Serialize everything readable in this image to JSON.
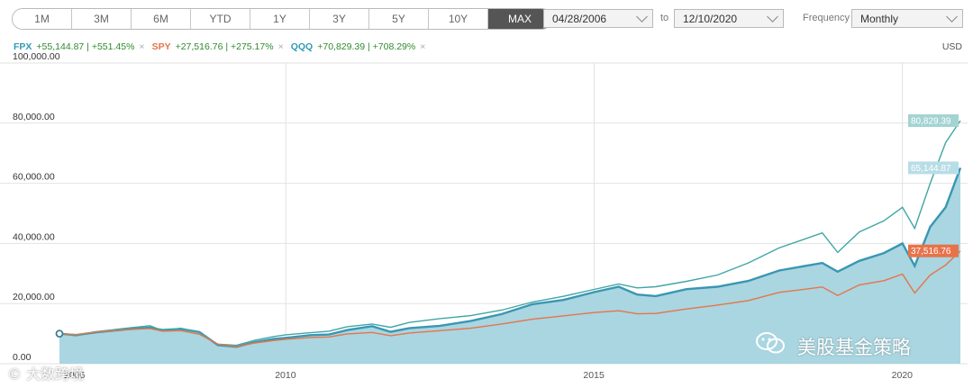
{
  "range_buttons": [
    "1M",
    "3M",
    "6M",
    "YTD",
    "1Y",
    "3Y",
    "5Y",
    "10Y",
    "MAX"
  ],
  "active_range": "MAX",
  "date_range": {
    "from": "04/28/2006",
    "to_label": "to",
    "to": "12/10/2020"
  },
  "frequency": {
    "label": "Frequency",
    "value": "Monthly"
  },
  "currency": "USD",
  "legend": [
    {
      "ticker": "FPX",
      "change": "+55,144.87 | +551.45%",
      "color": "#2f9ab8",
      "remove": "×"
    },
    {
      "ticker": "SPY",
      "change": "+27,516.76 | +275.17%",
      "color": "#e8734a",
      "remove": "×"
    },
    {
      "ticker": "QQQ",
      "change": "+70,829.39 | +708.29%",
      "color": "#2f9ab8",
      "remove": "×"
    }
  ],
  "watermark": "美股基金策略",
  "watermark2": "© 大数跨境",
  "chart_data": {
    "type": "area",
    "x_start": "2006-04-28",
    "x_end": "2020-12-10",
    "ylim": [
      0,
      100000
    ],
    "yticks": [
      "0.00",
      "20,000.00",
      "40,000.00",
      "60,000.00",
      "80,000.00",
      "100,000.00"
    ],
    "ytick_values": [
      0,
      20000,
      40000,
      60000,
      80000,
      100000
    ],
    "xticks": [
      "2006",
      "2010",
      "2015",
      "2020"
    ],
    "xtick_years": [
      2006.33,
      2010,
      2015,
      2020
    ],
    "grid": true,
    "series": [
      {
        "name": "FPX",
        "style": "area",
        "color": "#3a96b3",
        "fill": "#a9d6e0",
        "end_label": "65,144.87",
        "points": [
          [
            2006.33,
            10000
          ],
          [
            2006.6,
            9500
          ],
          [
            2006.9,
            10400
          ],
          [
            2007.2,
            11000
          ],
          [
            2007.5,
            11600
          ],
          [
            2007.8,
            12000
          ],
          [
            2008.0,
            11200
          ],
          [
            2008.3,
            11600
          ],
          [
            2008.6,
            10500
          ],
          [
            2008.9,
            6200
          ],
          [
            2009.2,
            5600
          ],
          [
            2009.5,
            7200
          ],
          [
            2009.8,
            8200
          ],
          [
            2010.0,
            8600
          ],
          [
            2010.4,
            9500
          ],
          [
            2010.7,
            9700
          ],
          [
            2011.0,
            11200
          ],
          [
            2011.4,
            12500
          ],
          [
            2011.7,
            10600
          ],
          [
            2012.0,
            11800
          ],
          [
            2012.5,
            12600
          ],
          [
            2013.0,
            14200
          ],
          [
            2013.5,
            16500
          ],
          [
            2014.0,
            19800
          ],
          [
            2014.5,
            21200
          ],
          [
            2015.0,
            23800
          ],
          [
            2015.4,
            25600
          ],
          [
            2015.7,
            23000
          ],
          [
            2016.0,
            22500
          ],
          [
            2016.5,
            24800
          ],
          [
            2017.0,
            25600
          ],
          [
            2017.5,
            27500
          ],
          [
            2018.0,
            31000
          ],
          [
            2018.7,
            33500
          ],
          [
            2018.95,
            30600
          ],
          [
            2019.3,
            34200
          ],
          [
            2019.7,
            36800
          ],
          [
            2020.0,
            40000
          ],
          [
            2020.2,
            32500
          ],
          [
            2020.45,
            45500
          ],
          [
            2020.7,
            52000
          ],
          [
            2020.94,
            65144.87
          ]
        ]
      },
      {
        "name": "QQQ",
        "style": "line",
        "color": "#3fa6a6",
        "end_label": "80,829.39",
        "points": [
          [
            2006.33,
            10000
          ],
          [
            2006.6,
            9300
          ],
          [
            2006.9,
            10600
          ],
          [
            2007.2,
            11300
          ],
          [
            2007.5,
            12000
          ],
          [
            2007.8,
            12600
          ],
          [
            2008.0,
            11000
          ],
          [
            2008.3,
            11800
          ],
          [
            2008.6,
            10300
          ],
          [
            2008.9,
            6500
          ],
          [
            2009.2,
            6100
          ],
          [
            2009.5,
            7800
          ],
          [
            2009.8,
            9000
          ],
          [
            2010.0,
            9600
          ],
          [
            2010.4,
            10300
          ],
          [
            2010.7,
            10800
          ],
          [
            2011.0,
            12300
          ],
          [
            2011.4,
            13200
          ],
          [
            2011.7,
            12100
          ],
          [
            2012.0,
            13700
          ],
          [
            2012.5,
            15000
          ],
          [
            2013.0,
            16000
          ],
          [
            2013.5,
            17800
          ],
          [
            2014.0,
            20500
          ],
          [
            2014.5,
            22400
          ],
          [
            2015.0,
            24700
          ],
          [
            2015.4,
            26500
          ],
          [
            2015.7,
            25200
          ],
          [
            2016.0,
            25600
          ],
          [
            2016.5,
            27400
          ],
          [
            2017.0,
            29500
          ],
          [
            2017.5,
            33500
          ],
          [
            2018.0,
            38500
          ],
          [
            2018.7,
            43500
          ],
          [
            2018.95,
            37000
          ],
          [
            2019.3,
            43800
          ],
          [
            2019.7,
            47500
          ],
          [
            2020.0,
            52000
          ],
          [
            2020.2,
            45000
          ],
          [
            2020.45,
            60000
          ],
          [
            2020.7,
            73500
          ],
          [
            2020.94,
            80829.39
          ]
        ]
      },
      {
        "name": "SPY",
        "style": "line",
        "color": "#e8734a",
        "end_label": "37,516.76",
        "points": [
          [
            2006.33,
            10000
          ],
          [
            2006.6,
            9700
          ],
          [
            2006.9,
            10500
          ],
          [
            2007.2,
            11000
          ],
          [
            2007.5,
            11400
          ],
          [
            2007.8,
            11700
          ],
          [
            2008.0,
            10800
          ],
          [
            2008.3,
            11000
          ],
          [
            2008.6,
            9800
          ],
          [
            2008.9,
            6500
          ],
          [
            2009.2,
            5700
          ],
          [
            2009.5,
            6900
          ],
          [
            2009.8,
            7700
          ],
          [
            2010.0,
            8100
          ],
          [
            2010.4,
            8700
          ],
          [
            2010.7,
            8900
          ],
          [
            2011.0,
            9900
          ],
          [
            2011.4,
            10400
          ],
          [
            2011.7,
            9300
          ],
          [
            2012.0,
            10200
          ],
          [
            2012.5,
            11000
          ],
          [
            2013.0,
            11800
          ],
          [
            2013.5,
            13200
          ],
          [
            2014.0,
            14800
          ],
          [
            2014.5,
            15900
          ],
          [
            2015.0,
            17000
          ],
          [
            2015.4,
            17600
          ],
          [
            2015.7,
            16600
          ],
          [
            2016.0,
            16700
          ],
          [
            2016.5,
            18200
          ],
          [
            2017.0,
            19500
          ],
          [
            2017.5,
            21000
          ],
          [
            2018.0,
            23700
          ],
          [
            2018.7,
            25500
          ],
          [
            2018.95,
            22700
          ],
          [
            2019.3,
            26200
          ],
          [
            2019.7,
            27600
          ],
          [
            2020.0,
            29800
          ],
          [
            2020.2,
            23500
          ],
          [
            2020.45,
            29500
          ],
          [
            2020.7,
            32800
          ],
          [
            2020.94,
            37516.76
          ]
        ]
      }
    ]
  }
}
